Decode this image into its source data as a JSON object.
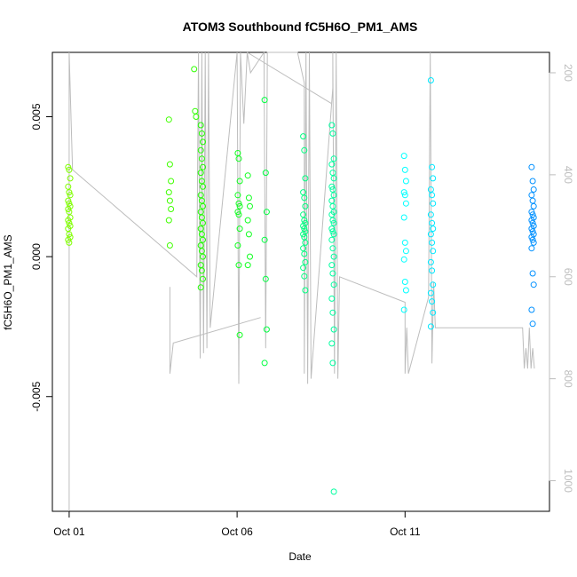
{
  "chart_data": {
    "type": "scatter",
    "title": "ATOM3 Southbound fC5H6O_PM1_AMS",
    "xlabel": "Date",
    "ylabel": "fC5H6O_PM1_AMS",
    "x_ticks": [
      {
        "label": "Oct 01",
        "value": 0
      },
      {
        "label": "Oct 06",
        "value": 5
      },
      {
        "label": "Oct 11",
        "value": 10
      }
    ],
    "y_ticks": [
      {
        "label": "-0.005",
        "value": -0.005
      },
      {
        "label": "0.000",
        "value": 0.0
      },
      {
        "label": "0.005",
        "value": 0.005
      }
    ],
    "y2_ticks": [
      {
        "label": "200",
        "value": 200
      },
      {
        "label": "400",
        "value": 400
      },
      {
        "label": "600",
        "value": 600
      },
      {
        "label": "800",
        "value": 800
      },
      {
        "label": "1000",
        "value": 1000
      }
    ],
    "xlim": [
      -0.5,
      14.3
    ],
    "ylim": [
      -0.0091,
      0.0073
    ],
    "y2lim": [
      1060,
      160
    ],
    "grid": false,
    "point_colors": {
      "Oct 01": "#80ff00",
      "Oct 04": "#40ff00",
      "Oct 05": "#20ff00",
      "Oct 06": "#10ff20",
      "Oct 07": "#00ff40",
      "Oct 08": "#00ff80",
      "Oct 09": "#00ffa0",
      "Oct 11": "#00ffff",
      "Oct 12": "#00e8ff",
      "Oct 14": "#0090ff"
    },
    "line_color": "#bdbdbd",
    "point_series": [
      {
        "day": 0.0,
        "color": "#80ff00",
        "y": [
          0.0032,
          0.0031,
          0.0028,
          0.0025,
          0.0023,
          0.0022,
          0.002,
          0.0019,
          0.0018,
          0.0017,
          0.0016,
          0.0014,
          0.0013,
          0.0012,
          0.0011,
          0.001,
          0.0008,
          0.0007,
          0.0006,
          0.0005
        ]
      },
      {
        "day": 3.0,
        "color": "#40ff00",
        "y": [
          0.0049,
          0.0033,
          0.0027,
          0.0023,
          0.002,
          0.0017,
          0.0013,
          0.0004
        ]
      },
      {
        "day": 3.75,
        "color": "#30ff00",
        "y": [
          0.0067,
          0.0052,
          0.005
        ]
      },
      {
        "day": 3.95,
        "color": "#20ff00",
        "y": [
          0.0047,
          0.0044,
          0.0041,
          0.0038,
          0.0035,
          0.0032,
          0.003,
          0.0027,
          0.0025,
          0.0022,
          0.002,
          0.0018,
          0.0016,
          0.0014,
          0.0012,
          0.001,
          0.0008,
          0.0006,
          0.0004,
          0.0002,
          0.0,
          -0.0003,
          -0.0005,
          -0.0008,
          -0.0011
        ]
      },
      {
        "day": 5.05,
        "color": "#10ff20",
        "y": [
          0.0037,
          0.0035,
          0.0027,
          0.0022,
          0.0019,
          0.0018,
          0.0016,
          0.0015,
          0.001,
          0.0004,
          -0.0003,
          -0.0028
        ]
      },
      {
        "day": 5.35,
        "color": "#10ff20",
        "y": [
          0.0029,
          0.0021,
          0.0018,
          0.0013,
          0.0008,
          0.0,
          -0.0003
        ]
      },
      {
        "day": 5.85,
        "color": "#00ff40",
        "y": [
          0.0056,
          0.003,
          0.0016,
          0.0006,
          -0.0008,
          -0.0026,
          -0.0038
        ]
      },
      {
        "day": 7.0,
        "color": "#00ff80",
        "y": [
          0.0043,
          0.0038,
          0.0028,
          0.0023,
          0.0021,
          0.0018,
          0.0015,
          0.0013,
          0.0012,
          0.0011,
          0.001,
          0.0009,
          0.0008,
          0.0007,
          0.0005,
          0.0003,
          0.0001,
          -0.0002,
          -0.0004,
          -0.0007,
          -0.0012
        ]
      },
      {
        "day": 7.85,
        "color": "#00ffa0",
        "y": [
          0.0047,
          0.0044,
          0.0035,
          0.0033,
          0.003,
          0.0028,
          0.0025,
          0.0024,
          0.0022,
          0.002,
          0.0018,
          0.0016,
          0.0015,
          0.0013,
          0.0012,
          0.001,
          0.0009,
          0.0008,
          0.0006,
          0.0003,
          0.0,
          -0.0003,
          -0.0006,
          -0.001,
          -0.0015,
          -0.002,
          -0.0026,
          -0.0031,
          -0.0038,
          -0.0084
        ]
      },
      {
        "day": 10.0,
        "color": "#00ffff",
        "y": [
          0.0036,
          0.0031,
          0.0027,
          0.0023,
          0.0022,
          0.0019,
          0.0014,
          0.0005,
          0.0002,
          -0.0001,
          -0.0009,
          -0.0012,
          -0.0019
        ]
      },
      {
        "day": 10.8,
        "color": "#00e8ff",
        "y": [
          0.0063,
          0.0032,
          0.0028,
          0.0024,
          0.0022,
          0.0019,
          0.0015,
          0.0012,
          0.001,
          0.0008,
          0.0005,
          0.0002,
          -0.0002,
          -0.0005,
          -0.001,
          -0.0013,
          -0.0016,
          -0.002,
          -0.0025
        ]
      },
      {
        "day": 13.8,
        "color": "#0090ff",
        "y": [
          0.0032,
          0.0027,
          0.0024,
          0.0022,
          0.002,
          0.0018,
          0.0016,
          0.0015,
          0.0014,
          0.0013,
          0.0012,
          0.0011,
          0.001,
          0.0009,
          0.0008,
          0.0007,
          0.0006,
          0.0005,
          0.0003,
          -0.0006,
          -0.001,
          -0.0019,
          -0.0024
        ]
      }
    ],
    "altitude_path": [
      [
        0.0,
        1060
      ],
      [
        0.0,
        800
      ],
      [
        0.0,
        160
      ],
      [
        0.1,
        390
      ],
      [
        3.8,
        600
      ],
      [
        3.85,
        160
      ],
      [
        3.9,
        760
      ],
      [
        3.95,
        160
      ],
      [
        4.0,
        750
      ],
      [
        4.05,
        160
      ],
      [
        4.1,
        740
      ],
      [
        4.15,
        160
      ],
      [
        4.2,
        700
      ],
      [
        5.0,
        160
      ],
      [
        5.05,
        810
      ],
      [
        5.1,
        160
      ],
      [
        5.2,
        300
      ],
      [
        5.3,
        160
      ],
      [
        5.4,
        200
      ],
      [
        5.8,
        160
      ],
      [
        5.85,
        740
      ],
      [
        5.9,
        160
      ],
      [
        6.8,
        160
      ],
      [
        7.0,
        220
      ],
      [
        7.0,
        790
      ],
      [
        7.05,
        160
      ],
      [
        7.1,
        810
      ],
      [
        7.15,
        160
      ],
      [
        7.2,
        800
      ],
      [
        7.85,
        230
      ],
      [
        7.85,
        160
      ],
      [
        7.9,
        790
      ],
      [
        7.95,
        160
      ],
      [
        8.0,
        800
      ],
      [
        8.05,
        600
      ],
      [
        10.0,
        650
      ],
      [
        10.0,
        790
      ],
      [
        10.05,
        700
      ],
      [
        10.1,
        790
      ],
      [
        10.7,
        640
      ],
      [
        10.75,
        160
      ],
      [
        10.8,
        770
      ],
      [
        10.85,
        610
      ],
      [
        10.9,
        700
      ],
      [
        13.5,
        700
      ],
      [
        13.55,
        780
      ],
      [
        13.6,
        740
      ],
      [
        13.65,
        780
      ],
      [
        13.7,
        700
      ],
      [
        13.75,
        780
      ],
      [
        13.8,
        740
      ],
      [
        13.85,
        780
      ]
    ],
    "altitude_side_segments": [
      [
        [
          3.0,
          620
        ],
        [
          3.0,
          790
        ],
        [
          3.1,
          730
        ],
        [
          5.7,
          680
        ]
      ],
      [
        [
          5.3,
          160
        ],
        [
          7.8,
          260
        ]
      ]
    ]
  }
}
